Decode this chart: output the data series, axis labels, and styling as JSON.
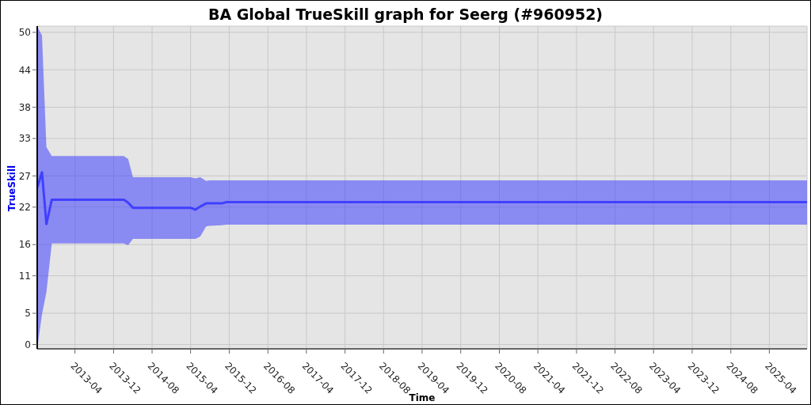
{
  "chart_data": {
    "type": "line",
    "title": "BA Global TrueSkill graph for Seerg (#960952)",
    "xlabel": "Time",
    "ylabel": "TrueSkill",
    "x": [
      "2012-08-06",
      "2012-09-05",
      "2012-10-03",
      "2012-11-06",
      "2014-02-03",
      "2014-03-03",
      "2014-04-02",
      "2015-03-30",
      "2015-05-02",
      "2015-06-01",
      "2015-07-08",
      "2015-07-30",
      "2015-10-13",
      "2015-11-15",
      "2025-11-25"
    ],
    "series": [
      {
        "color": "#4040ff",
        "values": [
          25.1,
          27.6,
          19.3,
          23.2,
          23.2,
          22.7,
          21.9,
          21.9,
          21.6,
          22.1,
          22.6,
          22.6,
          22.6,
          22.8,
          22.8
        ],
        "lower": [
          -0.7,
          4.8,
          8.4,
          16.2,
          16.2,
          15.9,
          16.9,
          16.9,
          16.9,
          17.3,
          18.9,
          19.0,
          19.1,
          19.2,
          19.2
        ],
        "upper": [
          50.9,
          49.5,
          31.6,
          30.2,
          30.2,
          29.7,
          26.8,
          26.8,
          26.6,
          26.8,
          26.2,
          26.3,
          26.3,
          26.3,
          26.3
        ]
      }
    ],
    "xlim": [
      "2012-08-06",
      "2025-11-25"
    ],
    "xticks": [
      "2013-04",
      "2013-12",
      "2014-08",
      "2015-04",
      "2015-12",
      "2016-08",
      "2017-04",
      "2017-12",
      "2018-08",
      "2019-04",
      "2019-12",
      "2020-08",
      "2021-04",
      "2021-12",
      "2022-08",
      "2023-04",
      "2023-12",
      "2024-08",
      "2025-04"
    ],
    "ylim": [
      -0.7,
      51
    ],
    "yticks": [
      0,
      5,
      11,
      16,
      22,
      27,
      33,
      38,
      44,
      50
    ],
    "grid": true,
    "marker": "none",
    "line_style": "solid"
  }
}
